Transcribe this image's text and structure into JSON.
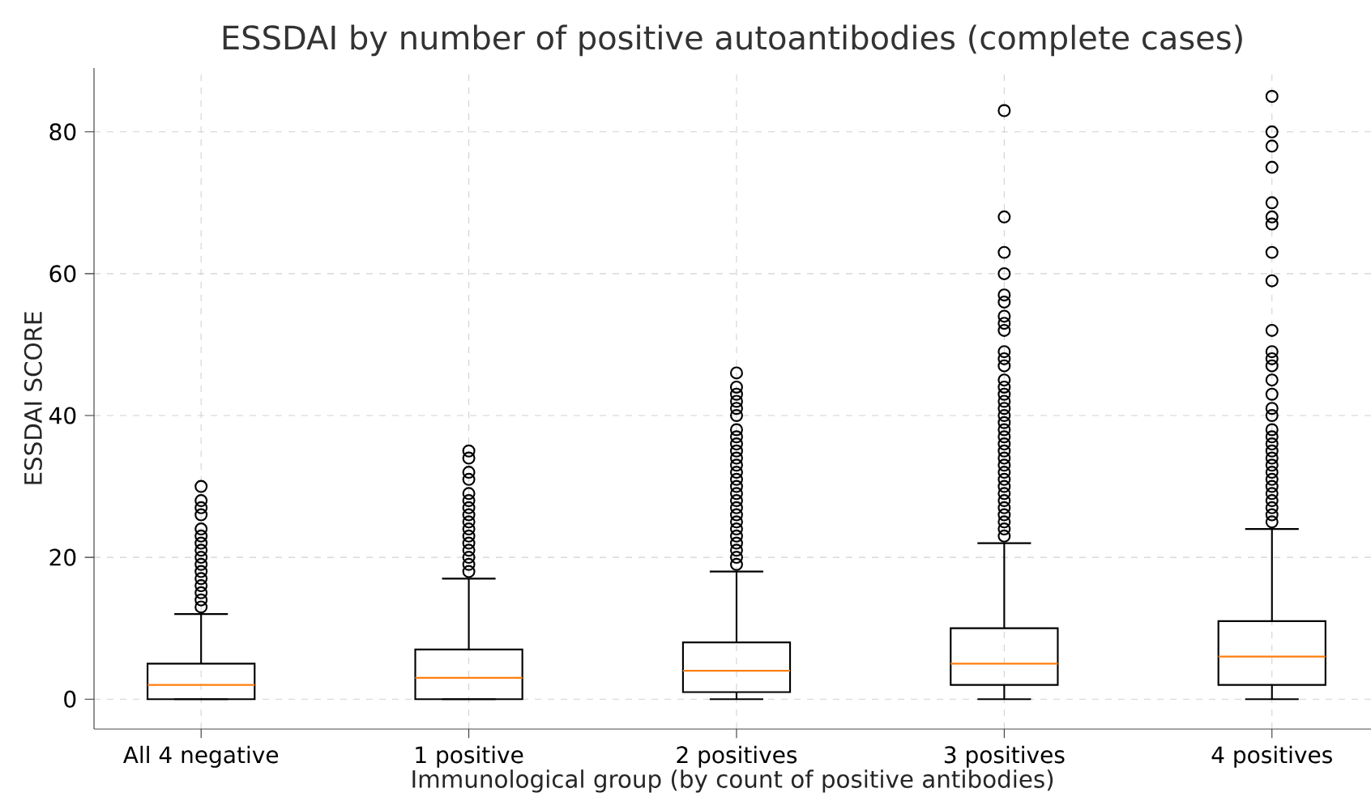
{
  "chart_data": {
    "type": "box",
    "title": "ESSDAI by number of positive autoantibodies (complete cases)",
    "xlabel": "Immunological group (by count of positive antibodies)",
    "ylabel": "ESSDAI SCORE",
    "categories": [
      "All 4 negative",
      "1 positive",
      "2 positives",
      "3 positives",
      "4 positives"
    ],
    "series": [
      {
        "color": "#000000",
        "boxes": [
          {
            "low": 0,
            "q1": 0,
            "median": 2,
            "q3": 5,
            "high": 12,
            "outliers": [
              13,
              14,
              15,
              16,
              17,
              18,
              19,
              20,
              21,
              22,
              23,
              24,
              26,
              27,
              28,
              30
            ]
          },
          {
            "low": 0,
            "q1": 0,
            "median": 3,
            "q3": 7,
            "high": 17,
            "outliers": [
              18,
              19,
              20,
              21,
              22,
              23,
              24,
              25,
              26,
              27,
              28,
              29,
              31,
              32,
              34,
              35
            ]
          },
          {
            "low": 0,
            "q1": 1,
            "median": 4,
            "q3": 8,
            "high": 18,
            "outliers": [
              19,
              20,
              21,
              22,
              23,
              24,
              25,
              26,
              27,
              28,
              29,
              30,
              31,
              32,
              33,
              34,
              35,
              36,
              37,
              38,
              40,
              41,
              42,
              43,
              44,
              46
            ]
          },
          {
            "low": 0,
            "q1": 2,
            "median": 5,
            "q3": 10,
            "high": 22,
            "outliers": [
              23,
              24,
              25,
              26,
              27,
              28,
              29,
              30,
              31,
              32,
              33,
              34,
              35,
              36,
              37,
              38,
              39,
              40,
              41,
              42,
              43,
              44,
              45,
              47,
              48,
              49,
              52,
              53,
              54,
              56,
              57,
              60,
              63,
              68,
              83
            ]
          },
          {
            "low": 0,
            "q1": 2,
            "median": 6,
            "q3": 11,
            "high": 24,
            "outliers": [
              25,
              26,
              27,
              28,
              29,
              30,
              31,
              32,
              33,
              34,
              35,
              36,
              37,
              38,
              40,
              41,
              43,
              45,
              47,
              48,
              49,
              52,
              59,
              63,
              67,
              68,
              70,
              75,
              78,
              80,
              85
            ]
          }
        ]
      }
    ],
    "ylim": [
      -4.2,
      89
    ],
    "yticks": [
      0,
      20,
      40,
      60,
      80
    ],
    "grid": true
  }
}
